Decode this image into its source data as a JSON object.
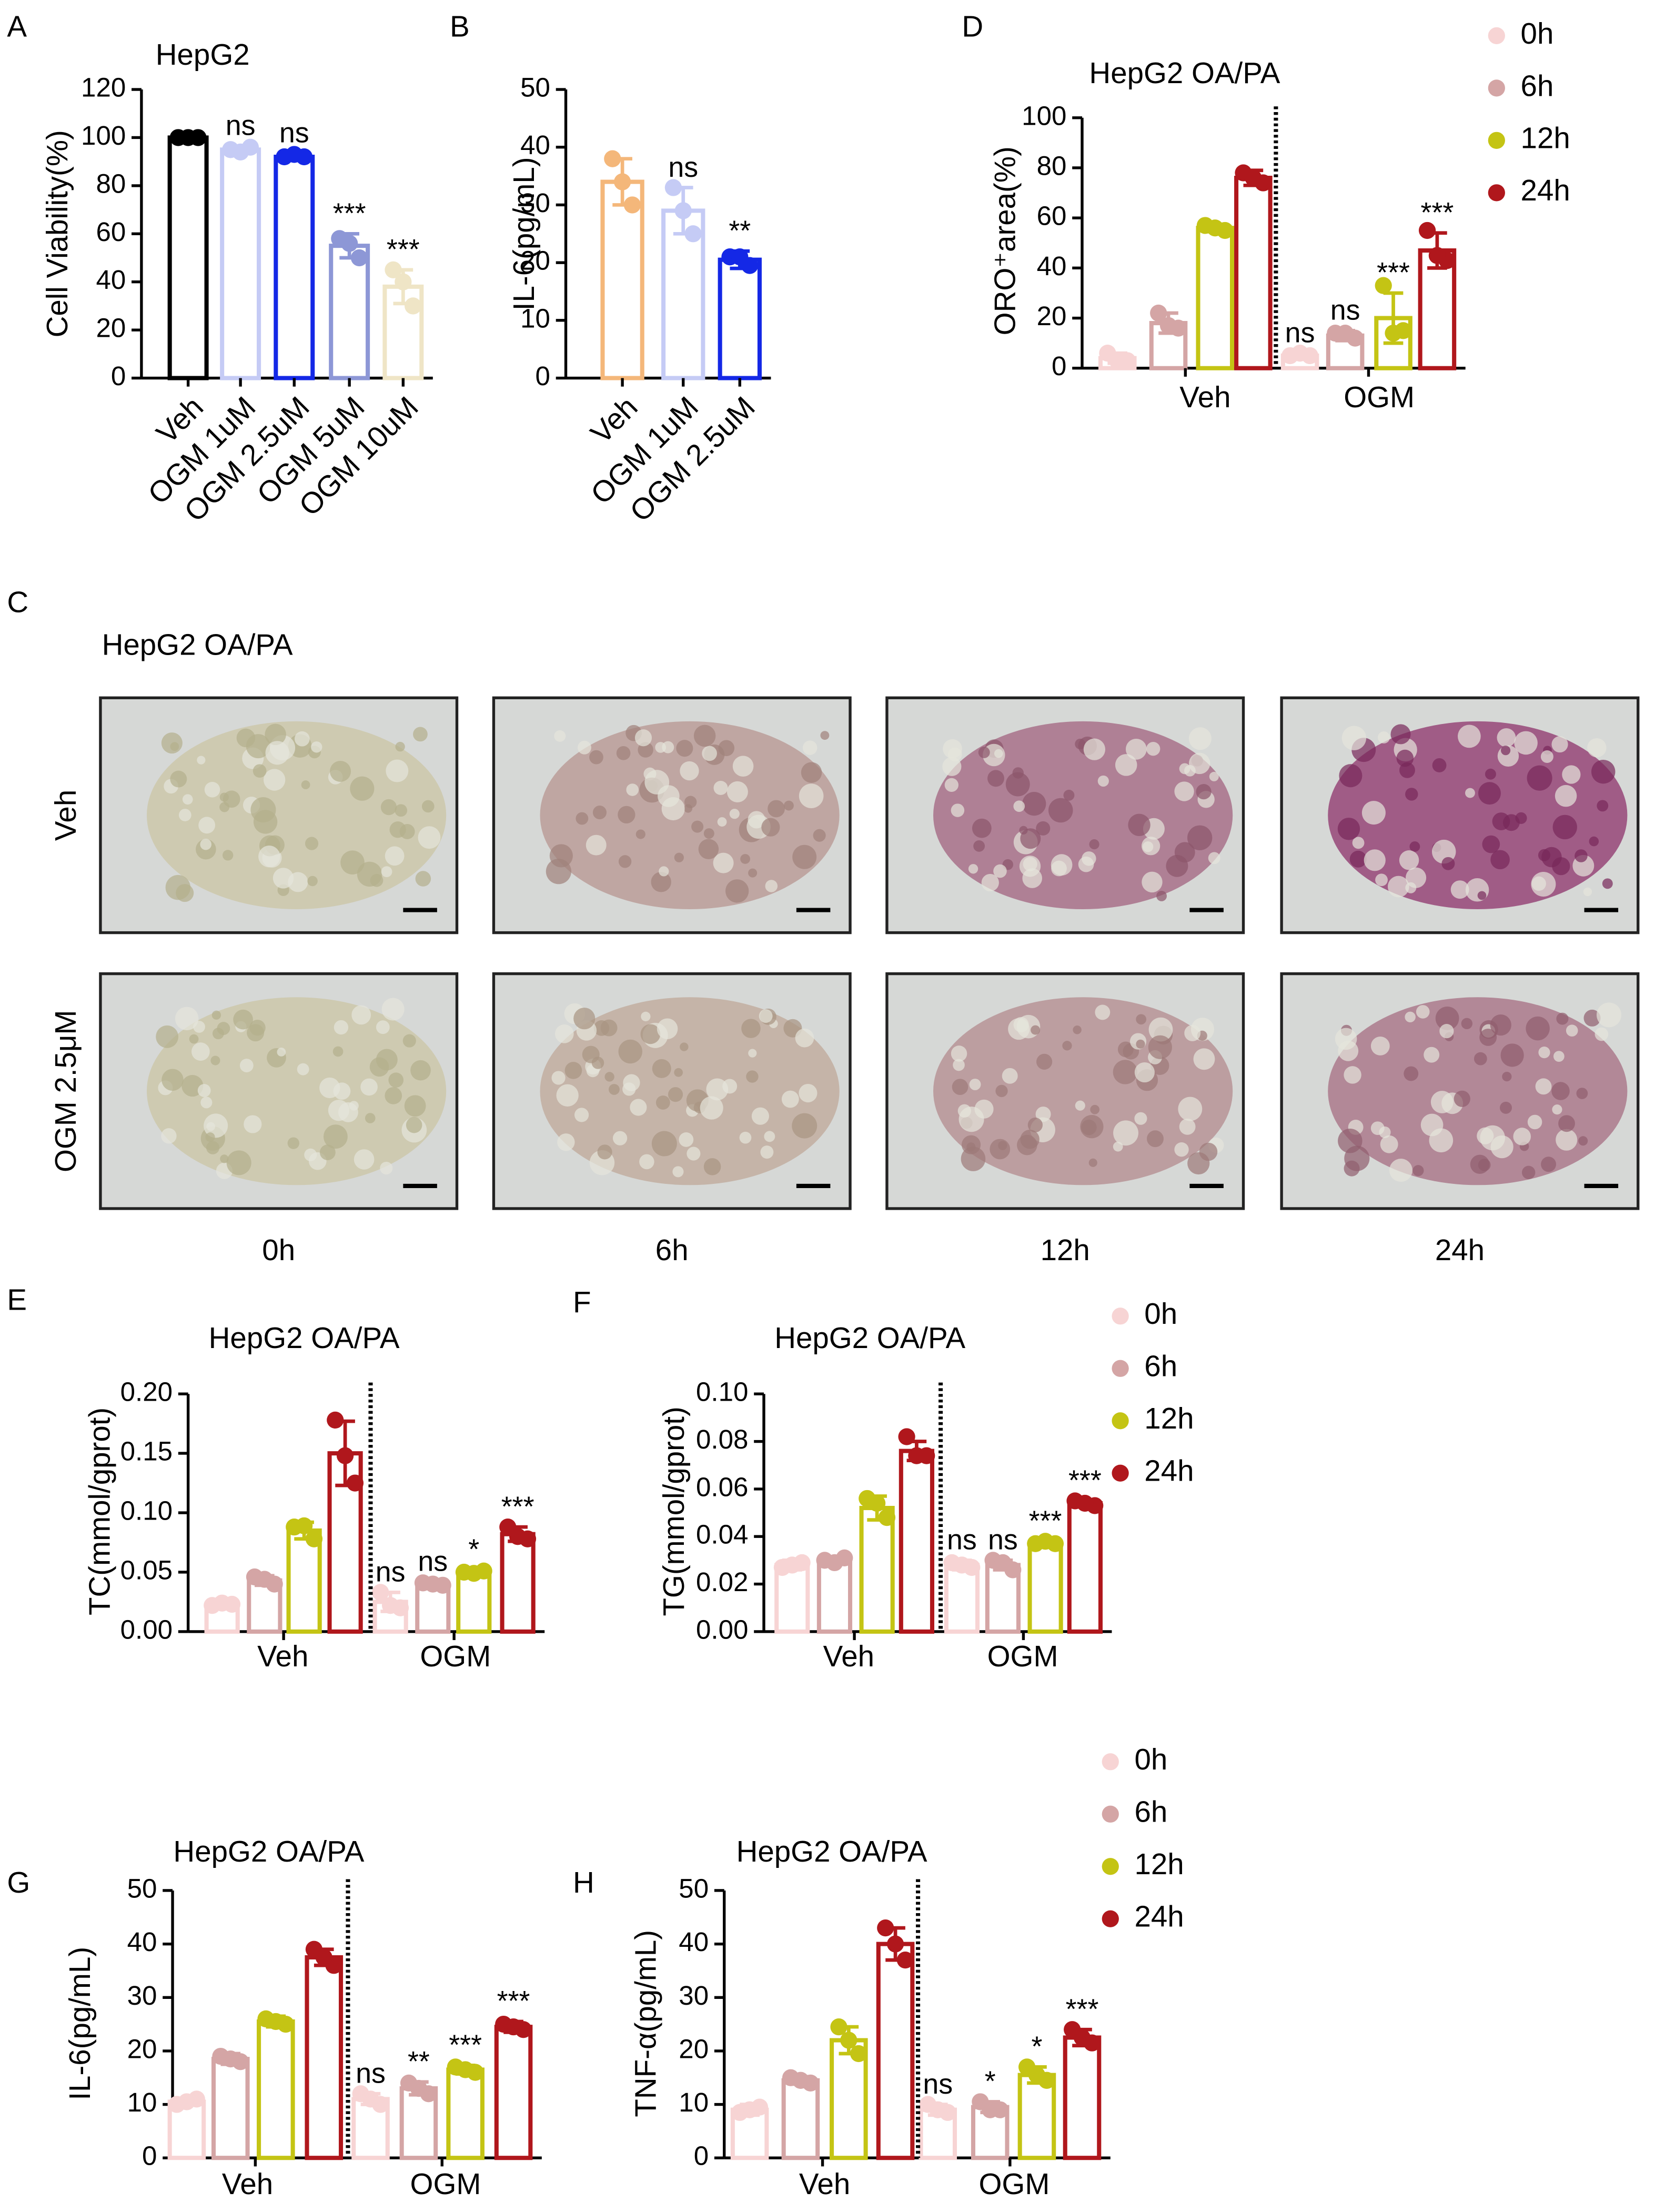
{
  "chart_data": [
    {
      "panel": "A",
      "type": "bar",
      "title": "HepG2",
      "ylabel": "Cell Viability(%)",
      "categories": [
        "Veh",
        "OGM 1uM",
        "OGM 2.5uM",
        "OGM 5uM",
        "OGM 10uM"
      ],
      "values": [
        100,
        95,
        92,
        55,
        38
      ],
      "errors": [
        1,
        1.5,
        1.5,
        5,
        7
      ],
      "points": [
        [
          100,
          100,
          100
        ],
        [
          95,
          96,
          94
        ],
        [
          92,
          92,
          93
        ],
        [
          58,
          50,
          56
        ],
        [
          45,
          30,
          40
        ]
      ],
      "colors": [
        "#000000",
        "#c5cbf5",
        "#1428e6",
        "#8d97d6",
        "#efe5c6"
      ],
      "annotations": [
        null,
        "ns",
        "ns",
        "***",
        "***"
      ],
      "ylim": [
        0,
        120
      ],
      "yticks": [
        0,
        20,
        40,
        60,
        80,
        100,
        120
      ]
    },
    {
      "panel": "B",
      "type": "bar",
      "ylabel": "IL-6(pg/mL)",
      "categories": [
        "Veh",
        "OGM 1uM",
        "OGM 2.5uM"
      ],
      "values": [
        34,
        29,
        20.5
      ],
      "errors": [
        4,
        4,
        1.5
      ],
      "points": [
        [
          38,
          30,
          34
        ],
        [
          33,
          25,
          29
        ],
        [
          21,
          19.5,
          21
        ]
      ],
      "colors": [
        "#f4b77a",
        "#c5cbf5",
        "#1428e6"
      ],
      "annotations": [
        null,
        "ns",
        "**"
      ],
      "ylim": [
        0,
        50
      ],
      "yticks": [
        0,
        10,
        20,
        30,
        40,
        50
      ]
    },
    {
      "panel": "D",
      "type": "grouped_bar",
      "title": "HepG2 OA/PA",
      "ylabel": "ORO⁺area(%)",
      "categories": [
        "Veh",
        "OGM"
      ],
      "legend": "right",
      "series": [
        {
          "name": "0h",
          "color": "#f7d4d4",
          "values": [
            4,
            5
          ],
          "errors": [
            2,
            1
          ],
          "points": [
            [
              6,
              3,
              3
            ],
            [
              5,
              5,
              6
            ]
          ],
          "annotations": [
            null,
            "ns"
          ]
        },
        {
          "name": "6h",
          "color": "#d4a5a5",
          "values": [
            18,
            13
          ],
          "errors": [
            4,
            2
          ],
          "points": [
            [
              22,
              16,
              17
            ],
            [
              14,
              12,
              14
            ]
          ],
          "annotations": [
            null,
            "ns"
          ]
        },
        {
          "name": "12h",
          "color": "#c4c414",
          "values": [
            56,
            20
          ],
          "errors": [
            1.5,
            10
          ],
          "points": [
            [
              57,
              55,
              56
            ],
            [
              33,
              15,
              14
            ]
          ],
          "annotations": [
            null,
            "***"
          ]
        },
        {
          "name": "24h",
          "color": "#b0171c",
          "values": [
            76,
            47
          ],
          "errors": [
            3,
            7
          ],
          "points": [
            [
              78,
              74,
              76
            ],
            [
              55,
              43,
              45
            ]
          ],
          "annotations": [
            null,
            "***"
          ]
        }
      ],
      "ylim": [
        0,
        100
      ],
      "yticks": [
        0,
        20,
        40,
        60,
        80,
        100
      ]
    },
    {
      "panel": "E",
      "type": "grouped_bar",
      "title": "HepG2 OA/PA",
      "ylabel": "TC(mmol/gprot)",
      "categories": [
        "Veh",
        "OGM"
      ],
      "series": [
        {
          "name": "0h",
          "color": "#f7d4d4",
          "values": [
            0.023,
            0.025
          ],
          "errors": [
            0.003,
            0.008
          ],
          "points": [
            [
              0.022,
              0.023,
              0.024
            ],
            [
              0.033,
              0.02,
              0.022
            ]
          ],
          "annotations": [
            null,
            "ns"
          ]
        },
        {
          "name": "6h",
          "color": "#d4a5a5",
          "values": [
            0.043,
            0.04
          ],
          "errors": [
            0.004,
            0.002
          ],
          "points": [
            [
              0.046,
              0.04,
              0.044
            ],
            [
              0.041,
              0.039,
              0.04
            ]
          ],
          "annotations": [
            null,
            "ns"
          ]
        },
        {
          "name": "12h",
          "color": "#c4c414",
          "values": [
            0.085,
            0.05
          ],
          "errors": [
            0.007,
            0.002
          ],
          "points": [
            [
              0.088,
              0.078,
              0.089
            ],
            [
              0.05,
              0.051,
              0.049
            ]
          ],
          "annotations": [
            null,
            "*"
          ]
        },
        {
          "name": "24h",
          "color": "#b0171c",
          "values": [
            0.15,
            0.082
          ],
          "errors": [
            0.027,
            0.006
          ],
          "points": [
            [
              0.178,
              0.125,
              0.148
            ],
            [
              0.088,
              0.078,
              0.08
            ]
          ],
          "annotations": [
            null,
            "***"
          ]
        }
      ],
      "ylim": [
        0,
        0.2
      ],
      "yticks": [
        {
          "value": 0,
          "label": "0.00"
        },
        0.05,
        {
          "value": 0.1,
          "label": "0.10"
        },
        0.15,
        {
          "value": 0.2,
          "label": "0.20"
        }
      ]
    },
    {
      "panel": "F",
      "type": "grouped_bar",
      "title": "HepG2 OA/PA",
      "ylabel": "TG(mmol/gprot)",
      "categories": [
        "Veh",
        "OGM"
      ],
      "legend": "right",
      "series": [
        {
          "name": "0h",
          "color": "#f7d4d4",
          "values": [
            0.028,
            0.028
          ],
          "errors": [
            0.002,
            0.002
          ],
          "points": [
            [
              0.027,
              0.029,
              0.028
            ],
            [
              0.029,
              0.027,
              0.028
            ]
          ],
          "annotations": [
            null,
            "ns"
          ]
        },
        {
          "name": "6h",
          "color": "#d4a5a5",
          "values": [
            0.03,
            0.028
          ],
          "errors": [
            0.001,
            0.002
          ],
          "points": [
            [
              0.03,
              0.031,
              0.029
            ],
            [
              0.03,
              0.026,
              0.029
            ]
          ],
          "annotations": [
            null,
            "ns"
          ]
        },
        {
          "name": "12h",
          "color": "#c4c414",
          "values": [
            0.052,
            0.037
          ],
          "errors": [
            0.005,
            0.001
          ],
          "points": [
            [
              0.056,
              0.048,
              0.054
            ],
            [
              0.037,
              0.037,
              0.038
            ]
          ],
          "annotations": [
            null,
            "***"
          ]
        },
        {
          "name": "24h",
          "color": "#b0171c",
          "values": [
            0.076,
            0.054
          ],
          "errors": [
            0.004,
            0.001
          ],
          "points": [
            [
              0.082,
              0.074,
              0.074
            ],
            [
              0.055,
              0.053,
              0.054
            ]
          ],
          "annotations": [
            null,
            "***"
          ]
        }
      ],
      "ylim": [
        0,
        0.1
      ],
      "yticks": [
        {
          "value": 0,
          "label": "0.00"
        },
        0.02,
        0.04,
        0.06,
        0.08,
        {
          "value": 0.1,
          "label": "0.10"
        }
      ]
    },
    {
      "panel": "G",
      "type": "grouped_bar",
      "title": "HepG2 OA/PA",
      "ylabel": "IL-6(pg/mL)",
      "categories": [
        "Veh",
        "OGM"
      ],
      "series": [
        {
          "name": "0h",
          "color": "#f7d4d4",
          "values": [
            10.5,
            11
          ],
          "errors": [
            0.5,
            1
          ],
          "points": [
            [
              10,
              11,
              10.5
            ],
            [
              12,
              10,
              11
            ]
          ],
          "annotations": [
            null,
            "ns"
          ]
        },
        {
          "name": "6h",
          "color": "#d4a5a5",
          "values": [
            18.5,
            13
          ],
          "errors": [
            1,
            1.2
          ],
          "points": [
            [
              19,
              18,
              18.5
            ],
            [
              14,
              12,
              13
            ]
          ],
          "annotations": [
            null,
            "**"
          ]
        },
        {
          "name": "12h",
          "color": "#c4c414",
          "values": [
            25.5,
            16.5
          ],
          "errors": [
            1,
            0.8
          ],
          "points": [
            [
              26,
              25,
              25.5
            ],
            [
              17,
              16,
              16.5
            ]
          ],
          "annotations": [
            null,
            "***"
          ]
        },
        {
          "name": "24h",
          "color": "#b0171c",
          "values": [
            37.5,
            24.5
          ],
          "errors": [
            1.5,
            1
          ],
          "points": [
            [
              39,
              36,
              37.5
            ],
            [
              25,
              24,
              24.5
            ]
          ],
          "annotations": [
            null,
            "***"
          ]
        }
      ],
      "ylim": [
        0,
        50
      ],
      "yticks": [
        0,
        10,
        20,
        30,
        40,
        50
      ]
    },
    {
      "panel": "H",
      "type": "grouped_bar",
      "title": "HepG2 OA/PA",
      "ylabel": "TNF-α(pg/mL)",
      "categories": [
        "Veh",
        "OGM"
      ],
      "legend": "right",
      "series": [
        {
          "name": "0h",
          "color": "#f7d4d4",
          "values": [
            9,
            9
          ],
          "errors": [
            1,
            1
          ],
          "points": [
            [
              8.5,
              9.5,
              9
            ],
            [
              10,
              8.5,
              9
            ]
          ],
          "annotations": [
            null,
            "ns"
          ]
        },
        {
          "name": "6h",
          "color": "#d4a5a5",
          "values": [
            14.5,
            9.5
          ],
          "errors": [
            0.7,
            1
          ],
          "points": [
            [
              15,
              14,
              14.5
            ],
            [
              10.5,
              9,
              9
            ]
          ],
          "annotations": [
            null,
            "*"
          ]
        },
        {
          "name": "12h",
          "color": "#c4c414",
          "values": [
            22,
            15.5
          ],
          "errors": [
            2.5,
            1.5
          ],
          "points": [
            [
              24.5,
              19.5,
              22
            ],
            [
              17,
              14.5,
              15.5
            ]
          ],
          "annotations": [
            null,
            "*"
          ]
        },
        {
          "name": "24h",
          "color": "#b0171c",
          "values": [
            40,
            22.5
          ],
          "errors": [
            3,
            1.5
          ],
          "points": [
            [
              43,
              37,
              40
            ],
            [
              24,
              21.5,
              22.5
            ]
          ],
          "annotations": [
            null,
            "***"
          ]
        }
      ],
      "ylim": [
        0,
        50
      ],
      "yticks": [
        0,
        10,
        20,
        30,
        40,
        50
      ]
    }
  ],
  "micrographs": {
    "panel": "C",
    "title": "HepG2 OA/PA",
    "rows": [
      "Veh",
      "OGM 2.5μM"
    ],
    "columns": [
      "0h",
      "6h",
      "12h",
      "24h"
    ]
  }
}
